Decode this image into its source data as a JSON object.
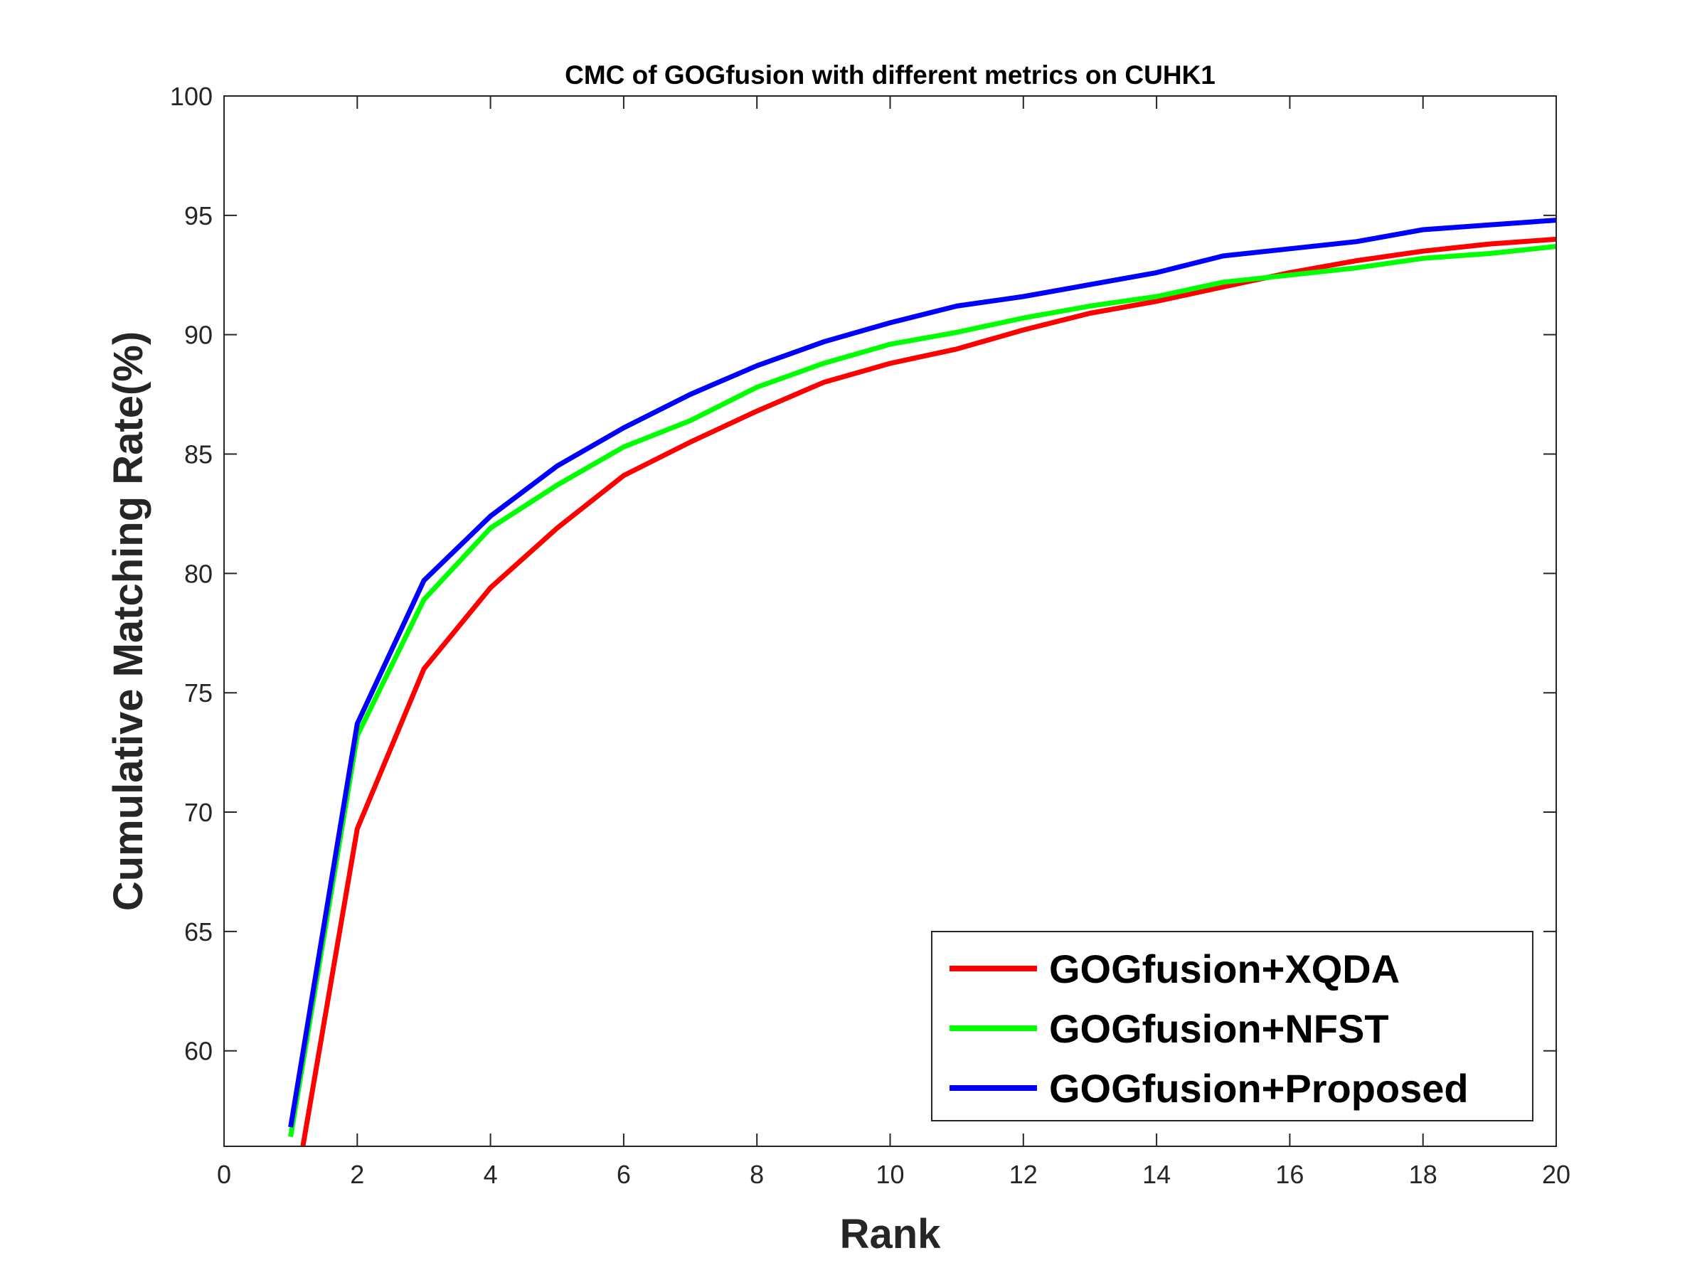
{
  "chart_data": {
    "type": "line",
    "title": "CMC of GOGfusion with different metrics on CUHK1",
    "xlabel": "Rank",
    "ylabel": "Cumulative Matching Rate(%)",
    "xlim": [
      0,
      20
    ],
    "ylim": [
      56,
      100
    ],
    "xticks": [
      0,
      2,
      4,
      6,
      8,
      10,
      12,
      14,
      16,
      18,
      20
    ],
    "yticks": [
      60,
      65,
      70,
      75,
      80,
      85,
      90,
      95,
      100
    ],
    "grid": false,
    "legend_position": "bottom-right",
    "x": [
      1,
      2,
      3,
      4,
      5,
      6,
      7,
      8,
      9,
      10,
      11,
      12,
      13,
      14,
      15,
      16,
      17,
      18,
      19,
      20
    ],
    "series": [
      {
        "name": "GOGfusion+XQDA",
        "color": "#ff0000",
        "values": [
          53.0,
          69.3,
          76.0,
          79.4,
          81.9,
          84.1,
          85.5,
          86.8,
          88.0,
          88.8,
          89.4,
          90.2,
          90.9,
          91.4,
          92.0,
          92.6,
          93.1,
          93.5,
          93.8,
          94.0
        ]
      },
      {
        "name": "GOGfusion+NFST",
        "color": "#00ff00",
        "values": [
          56.4,
          73.2,
          78.9,
          81.9,
          83.7,
          85.3,
          86.4,
          87.8,
          88.8,
          89.6,
          90.1,
          90.7,
          91.2,
          91.6,
          92.2,
          92.5,
          92.8,
          93.2,
          93.4,
          93.7
        ]
      },
      {
        "name": "GOGfusion+Proposed",
        "color": "#0000ff",
        "values": [
          56.8,
          73.7,
          79.7,
          82.4,
          84.5,
          86.1,
          87.5,
          88.7,
          89.7,
          90.5,
          91.2,
          91.6,
          92.1,
          92.6,
          93.3,
          93.6,
          93.9,
          94.4,
          94.6,
          94.8
        ]
      }
    ]
  }
}
